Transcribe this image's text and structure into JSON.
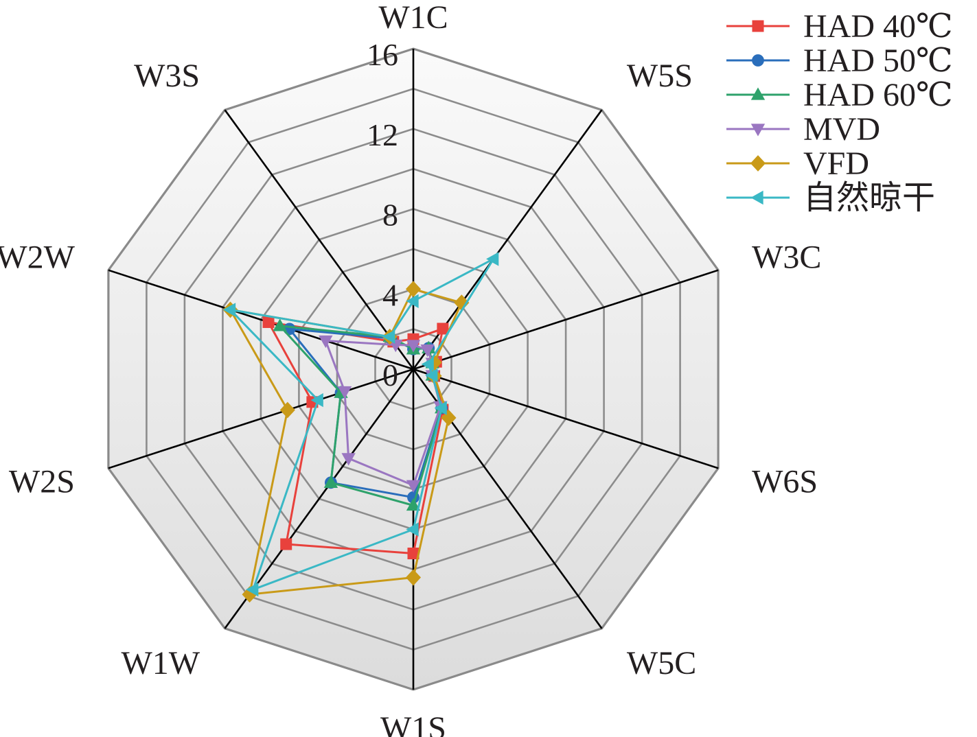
{
  "chart_data": {
    "type": "radar",
    "axes": [
      "W1C",
      "W5S",
      "W3C",
      "W6S",
      "W5C",
      "W1S",
      "W1W",
      "W2S",
      "W2W",
      "W3S"
    ],
    "rlim": [
      0,
      16
    ],
    "ticks": [
      "0",
      "4",
      "8",
      "12",
      "16"
    ],
    "tick_values": [
      0,
      4,
      8,
      12,
      16
    ],
    "grid": true,
    "legend_position": "top-right",
    "series": [
      {
        "name": "HAD 40℃",
        "color": "#e8413c",
        "marker": "square",
        "values": [
          1.5,
          2.5,
          1.2,
          1.1,
          2.5,
          9.2,
          10.8,
          5.3,
          7.6,
          1.7
        ]
      },
      {
        "name": "HAD 50℃",
        "color": "#2a6ebb",
        "marker": "circle",
        "values": [
          1.0,
          1.3,
          1.0,
          1.0,
          2.4,
          6.4,
          7.0,
          3.8,
          6.5,
          1.9
        ]
      },
      {
        "name": "HAD 60℃",
        "color": "#2ea26b",
        "marker": "triangle-up",
        "values": [
          1.0,
          1.3,
          1.0,
          1.0,
          2.4,
          6.8,
          7.0,
          3.8,
          7.0,
          2.0
        ]
      },
      {
        "name": "MVD",
        "color": "#9a76c1",
        "marker": "triangle-down",
        "values": [
          1.2,
          1.2,
          1.0,
          1.0,
          2.3,
          5.8,
          5.5,
          3.6,
          4.6,
          1.5
        ]
      },
      {
        "name": "VFD",
        "color": "#c99a18",
        "marker": "diamond",
        "values": [
          4.0,
          4.1,
          1.1,
          1.1,
          3.0,
          10.4,
          13.9,
          6.6,
          9.6,
          2.0
        ]
      },
      {
        "name": "自然晾干",
        "color": "#3ab8c5",
        "marker": "triangle-left",
        "values": [
          3.4,
          6.8,
          0.8,
          1.0,
          2.4,
          8.0,
          13.6,
          5.0,
          9.6,
          2.0
        ]
      }
    ]
  }
}
